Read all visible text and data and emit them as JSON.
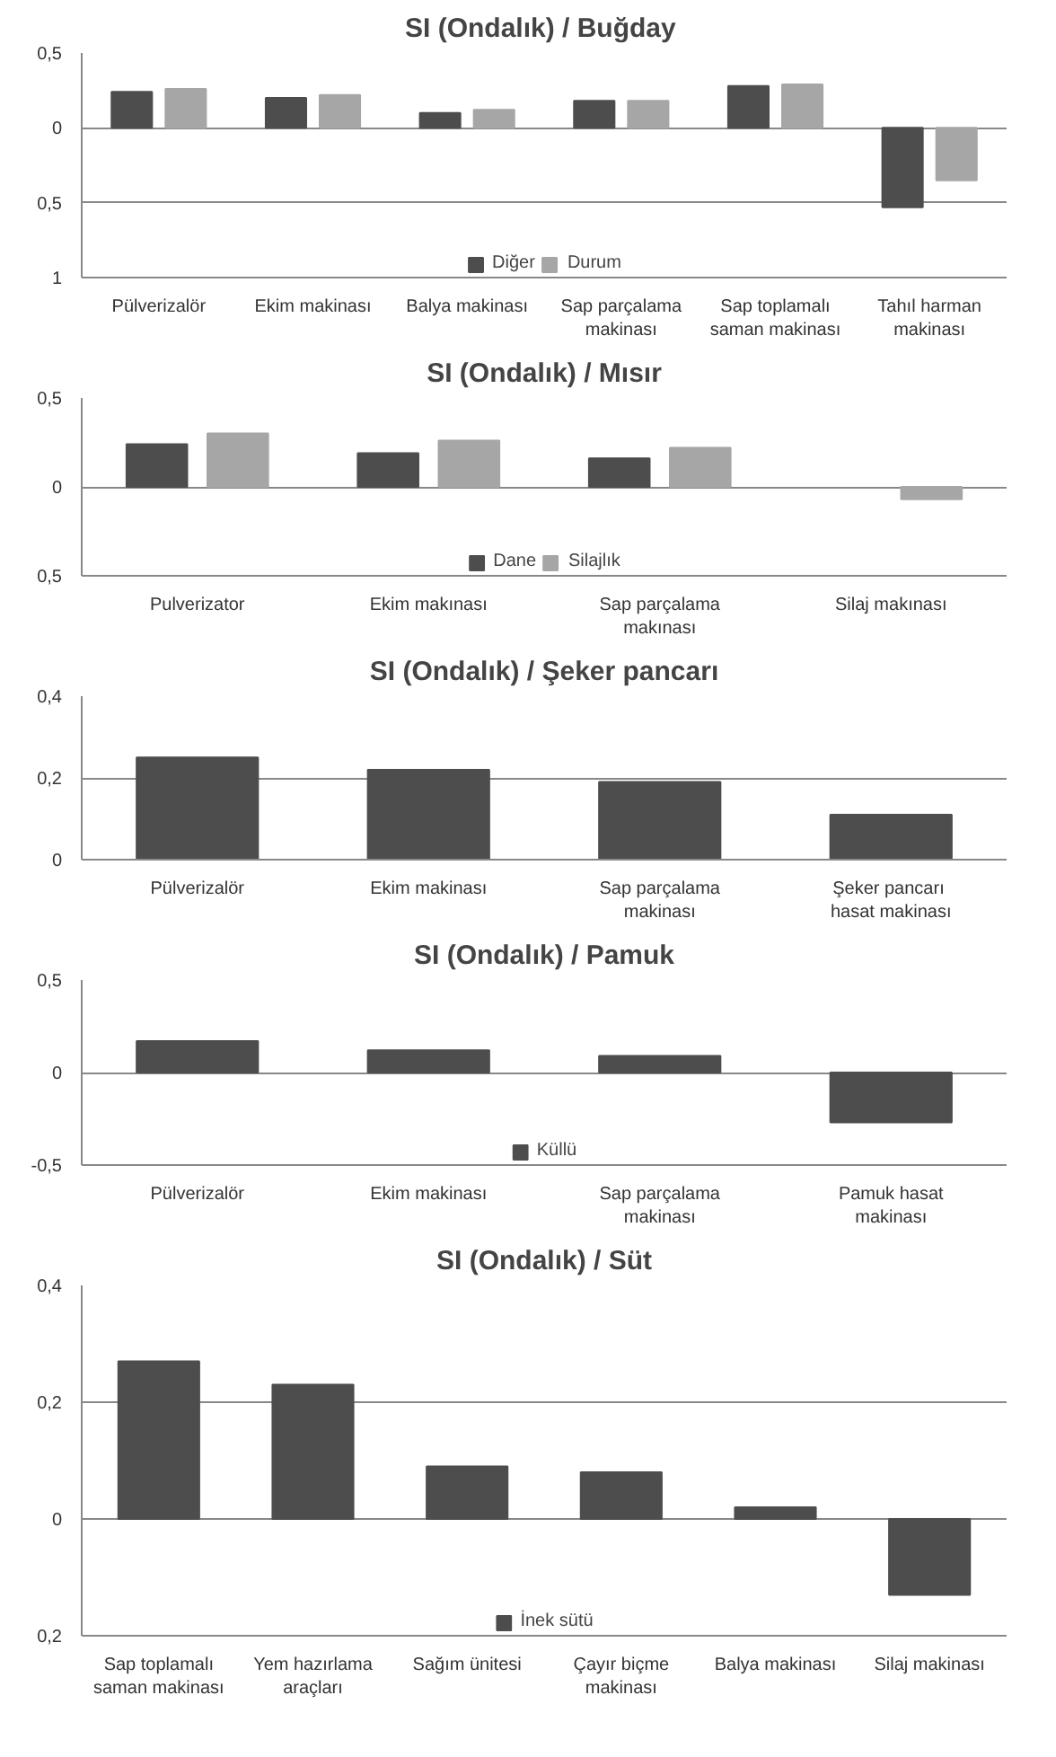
{
  "chart_data": [
    {
      "type": "bar",
      "title": "SI (Ondalık)  / Buğday",
      "categories": [
        "Pülverizalör",
        "Ekim makinası",
        "Balya makinası",
        "Sap parçalama makinası",
        "Sap toplamalı saman makinası",
        "Tahıl harman makinası"
      ],
      "series": [
        {
          "name": "Diğer",
          "color": "#4d4d4d",
          "values": [
            0.24,
            0.2,
            0.1,
            0.18,
            0.28,
            -0.53
          ]
        },
        {
          "name": "Durum",
          "color": "#a6a6a6",
          "values": [
            0.26,
            0.22,
            0.12,
            0.18,
            0.29,
            -0.35
          ]
        }
      ],
      "ylim": [
        -1,
        0.5
      ],
      "yticks": [
        {
          "value": 0.5,
          "label": "0,5"
        },
        0,
        {
          "value": -0.5,
          "label": "0,5"
        },
        {
          "value": -1,
          "label": "1"
        }
      ],
      "grid": "y",
      "legend": "bottom"
    },
    {
      "type": "bar",
      "title": "SI (Ondalık) / Mısır",
      "categories": [
        "Pulverizator",
        "Ekim makınası",
        "Sap parçalama makınası",
        "Silaj makınası"
      ],
      "series": [
        {
          "name": "Dane",
          "color": "#4d4d4d",
          "values": [
            0.24,
            0.19,
            0.16,
            null
          ]
        },
        {
          "name": "Silajlık",
          "color": "#a6a6a6",
          "values": [
            0.3,
            0.26,
            0.22,
            -0.07
          ]
        }
      ],
      "ylim": [
        -0.5,
        0.5
      ],
      "yticks": [
        {
          "value": 0.5,
          "label": "0,5"
        },
        0,
        {
          "value": -0.5,
          "label": "0,5"
        }
      ],
      "grid": "y",
      "legend": "bottom"
    },
    {
      "type": "bar",
      "title": "SI (Ondalık) / Şeker pancarı",
      "categories": [
        "Pülverizalör",
        "Ekim makinası",
        "Sap parçalama makinası",
        "Şeker  pancarı hasat makinası"
      ],
      "series": [
        {
          "color": "#4d4d4d",
          "values": [
            0.25,
            0.22,
            0.19,
            0.11
          ]
        }
      ],
      "ylim": [
        0,
        0.4
      ],
      "yticks": [
        {
          "value": 0.4,
          "label": "0,4"
        },
        {
          "value": 0.2,
          "label": "0,2"
        },
        0
      ],
      "grid": "y"
    },
    {
      "type": "bar",
      "title": "SI (Ondalık) / Pamuk",
      "categories": [
        "Pülverizalör",
        "Ekim makinası",
        "Sap parçalama makinası",
        "Pamuk hasat makinası"
      ],
      "series": [
        {
          "name": "Küllü",
          "color": "#4d4d4d",
          "values": [
            0.17,
            0.12,
            0.09,
            -0.27
          ]
        }
      ],
      "ylim": [
        -0.5,
        0.5
      ],
      "yticks": [
        {
          "value": 0.5,
          "label": "0,5"
        },
        0,
        {
          "value": -0.5,
          "label": "-0,5"
        }
      ],
      "grid": "y",
      "legend": "bottom"
    },
    {
      "type": "bar",
      "title": "SI (Ondalık) / Süt",
      "categories": [
        "Sap toplamalı saman makinası",
        "Yem hazırlama araçları",
        "Sağım ünitesi",
        "Çayır biçme makinası",
        "Balya makinası",
        "Silaj makinası"
      ],
      "series": [
        {
          "name": "İnek sütü",
          "color": "#4d4d4d",
          "values": [
            0.27,
            0.23,
            0.09,
            0.08,
            0.02,
            -0.13
          ]
        }
      ],
      "ylim": [
        -0.2,
        0.4
      ],
      "yticks": [
        {
          "value": 0.4,
          "label": "0,4"
        },
        {
          "value": 0.2,
          "label": "0,2"
        },
        0,
        {
          "value": -0.2,
          "label": "0,2"
        }
      ],
      "grid": "y",
      "legend": "bottom"
    }
  ]
}
